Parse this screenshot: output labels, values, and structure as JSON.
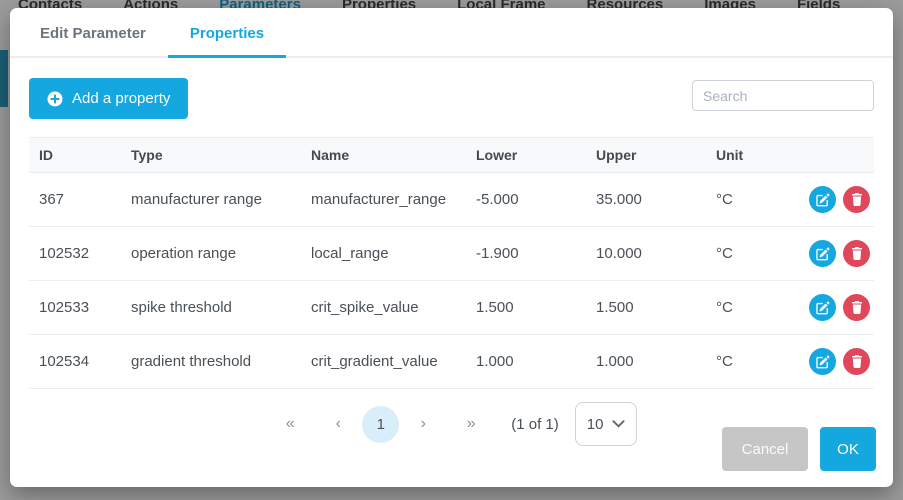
{
  "colors": {
    "accent": "#14a7e0",
    "danger": "#e0475a",
    "page_highlight": "#d8effb"
  },
  "background": {
    "tabs": [
      "Contacts",
      "Actions",
      "Parameters",
      "Properties",
      "Local Frame",
      "Resources",
      "Images",
      "Fields"
    ],
    "active_tab": "Parameters"
  },
  "modal": {
    "tabs": [
      {
        "label": "Edit Parameter",
        "active": false
      },
      {
        "label": "Properties",
        "active": true
      }
    ],
    "toolbar": {
      "add_button_label": "Add a property",
      "search_placeholder": "Search"
    },
    "table": {
      "columns": [
        "ID",
        "Type",
        "Name",
        "Lower",
        "Upper",
        "Unit"
      ],
      "rows": [
        {
          "id": "367",
          "type": "manufacturer range",
          "name": "manufacturer_range",
          "lower": "-5.000",
          "upper": "35.000",
          "unit": "°C"
        },
        {
          "id": "102532",
          "type": "operation range",
          "name": "local_range",
          "lower": "-1.900",
          "upper": "10.000",
          "unit": "°C"
        },
        {
          "id": "102533",
          "type": "spike threshold",
          "name": "crit_spike_value",
          "lower": "1.500",
          "upper": "1.500",
          "unit": "°C"
        },
        {
          "id": "102534",
          "type": "gradient threshold",
          "name": "crit_gradient_value",
          "lower": "1.000",
          "upper": "1.000",
          "unit": "°C"
        }
      ]
    },
    "pagination": {
      "first": "«",
      "prev": "‹",
      "page": "1",
      "next": "›",
      "last": "»",
      "status": "(1 of 1)",
      "rows_per_page": "10"
    },
    "footer": {
      "cancel_label": "Cancel",
      "ok_label": "OK"
    }
  }
}
